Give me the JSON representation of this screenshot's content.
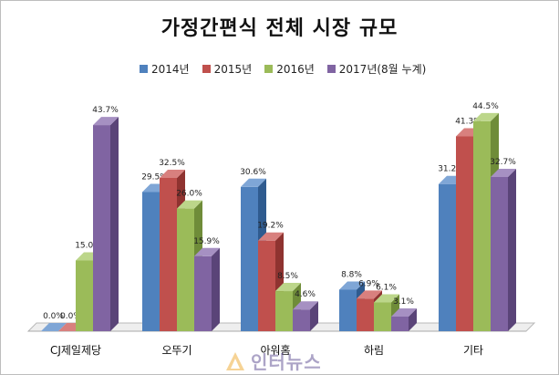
{
  "chart_data": {
    "type": "bar",
    "title": "가정간편식 전체 시장 규모",
    "categories": [
      "CJ제일제당",
      "오뚜기",
      "아워홈",
      "하림",
      "기타"
    ],
    "series": [
      {
        "name": "2014년",
        "color": "#4f81bd",
        "side": "#2f5b8f",
        "top": "#7fa6d6",
        "values": [
          0.0,
          29.5,
          30.6,
          8.8,
          31.2
        ],
        "labels": [
          "0.0%",
          "29.5%",
          "30.6%",
          "8.8%",
          "31.2%"
        ]
      },
      {
        "name": "2015년",
        "color": "#c0504d",
        "side": "#8f3330",
        "top": "#d8807e",
        "values": [
          0.0,
          32.5,
          19.2,
          6.9,
          41.3
        ],
        "labels": [
          "0.0%",
          "32.5%",
          "19.2%",
          "6.9%",
          "41.3%"
        ]
      },
      {
        "name": "2016년",
        "color": "#9bbb59",
        "side": "#6f8c39",
        "top": "#bcd68a",
        "values": [
          15.0,
          26.0,
          8.5,
          6.1,
          44.5
        ],
        "labels": [
          "15.0%",
          "26.0%",
          "8.5%",
          "6.1%",
          "44.5%"
        ]
      },
      {
        "name": "2017년(8월 누계)",
        "color": "#8064a2",
        "side": "#5a4478",
        "top": "#a690c2",
        "values": [
          43.7,
          15.9,
          4.6,
          3.1,
          32.7
        ],
        "labels": [
          "43.7%",
          "15.9%",
          "4.6%",
          "3.1%",
          "32.7%"
        ]
      }
    ],
    "ylim": [
      0,
      50
    ],
    "grid": false,
    "legend": "top"
  },
  "watermark": {
    "text": "인터뉴스"
  }
}
